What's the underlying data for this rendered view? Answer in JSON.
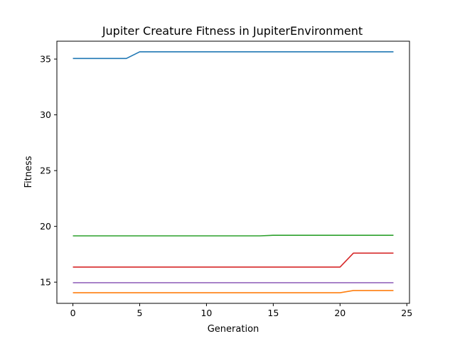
{
  "chart_data": {
    "type": "line",
    "title": "Jupiter Creature Fitness in JupiterEnvironment",
    "xlabel": "Generation",
    "ylabel": "Fitness",
    "xlim": [
      -1.2,
      25.2
    ],
    "ylim": [
      13.1,
      36.6
    ],
    "xticks": [
      0,
      5,
      10,
      15,
      20,
      25
    ],
    "yticks": [
      15,
      20,
      25,
      30,
      35
    ],
    "grid": false,
    "x": [
      0,
      1,
      2,
      3,
      4,
      5,
      6,
      7,
      8,
      9,
      10,
      11,
      12,
      13,
      14,
      15,
      16,
      17,
      18,
      19,
      20,
      21,
      22,
      23,
      24
    ],
    "series": [
      {
        "color": "#1f77b4",
        "values": [
          35.05,
          35.05,
          35.05,
          35.05,
          35.05,
          35.65,
          35.65,
          35.65,
          35.65,
          35.65,
          35.65,
          35.65,
          35.65,
          35.65,
          35.65,
          35.65,
          35.65,
          35.65,
          35.65,
          35.65,
          35.65,
          35.65,
          35.65,
          35.65,
          35.65
        ]
      },
      {
        "color": "#ff7f0e",
        "values": [
          14.05,
          14.05,
          14.05,
          14.05,
          14.05,
          14.05,
          14.05,
          14.05,
          14.05,
          14.05,
          14.05,
          14.05,
          14.05,
          14.05,
          14.05,
          14.05,
          14.05,
          14.05,
          14.05,
          14.05,
          14.05,
          14.25,
          14.25,
          14.25,
          14.25
        ]
      },
      {
        "color": "#2ca02c",
        "values": [
          19.15,
          19.15,
          19.15,
          19.15,
          19.15,
          19.15,
          19.15,
          19.15,
          19.15,
          19.15,
          19.15,
          19.15,
          19.15,
          19.15,
          19.15,
          19.2,
          19.2,
          19.2,
          19.2,
          19.2,
          19.2,
          19.2,
          19.2,
          19.2,
          19.2
        ]
      },
      {
        "color": "#d62728",
        "values": [
          16.35,
          16.35,
          16.35,
          16.35,
          16.35,
          16.35,
          16.35,
          16.35,
          16.35,
          16.35,
          16.35,
          16.35,
          16.35,
          16.35,
          16.35,
          16.35,
          16.35,
          16.35,
          16.35,
          16.35,
          16.35,
          17.6,
          17.6,
          17.6,
          17.6
        ]
      },
      {
        "color": "#9467bd",
        "values": [
          14.95,
          14.95,
          14.95,
          14.95,
          14.95,
          14.95,
          14.95,
          14.95,
          14.95,
          14.95,
          14.95,
          14.95,
          14.95,
          14.95,
          14.95,
          14.95,
          14.95,
          14.95,
          14.95,
          14.95,
          14.95,
          14.95,
          14.95,
          14.95,
          14.95
        ]
      }
    ]
  }
}
